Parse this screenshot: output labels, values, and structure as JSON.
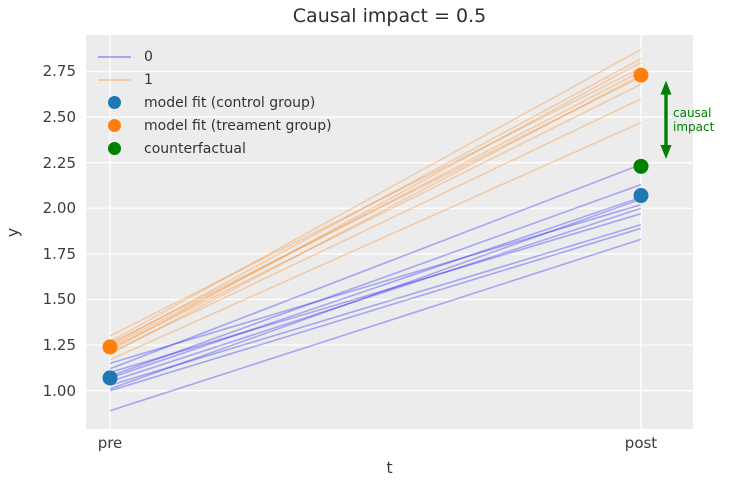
{
  "chart_data": {
    "type": "line",
    "title": "Causal impact = 0.5",
    "xlabel": "t",
    "ylabel": "y",
    "categories": [
      "pre",
      "post"
    ],
    "yticks": [
      1.0,
      1.25,
      1.5,
      1.75,
      2.0,
      2.25,
      2.5,
      2.75
    ],
    "ytick_labels": [
      "1.00",
      "1.25",
      "1.50",
      "1.75",
      "2.00",
      "2.25",
      "2.50",
      "2.75"
    ],
    "ylim": [
      0.79,
      2.95
    ],
    "grid": true,
    "legend_position": "upper-left",
    "plot_bg": "#ececec",
    "grid_color": "#ffffff",
    "series": [
      {
        "name": "0",
        "color": "rgba(0,0,255,0.3)",
        "lines": [
          [
            1.15,
            2.02
          ],
          [
            1.12,
            2.24
          ],
          [
            1.1,
            1.97
          ],
          [
            1.08,
            2.13
          ],
          [
            1.07,
            2.06
          ],
          [
            1.05,
            2.0
          ],
          [
            1.03,
            1.91
          ],
          [
            1.01,
            2.05
          ],
          [
            1.0,
            1.89
          ],
          [
            0.89,
            1.83
          ]
        ]
      },
      {
        "name": "1",
        "color": "rgba(255,127,14,0.3)",
        "lines": [
          [
            1.3,
            2.77
          ],
          [
            1.27,
            2.87
          ],
          [
            1.26,
            2.72
          ],
          [
            1.25,
            2.82
          ],
          [
            1.24,
            2.75
          ],
          [
            1.23,
            2.68
          ],
          [
            1.22,
            2.8
          ],
          [
            1.21,
            2.6
          ],
          [
            1.2,
            2.73
          ],
          [
            1.17,
            2.47
          ]
        ]
      }
    ],
    "points": [
      {
        "name": "model fit (control group)",
        "color": "#1f77b4",
        "values": {
          "pre": 1.07,
          "post": 2.07
        }
      },
      {
        "name": "model fit (treament group)",
        "color": "#ff7f0e",
        "values": {
          "pre": 1.24,
          "post": 2.73
        }
      },
      {
        "name": "counterfactual",
        "color": "#008000",
        "values": {
          "post": 2.23
        }
      }
    ],
    "annotation": {
      "text": "causal impact",
      "text_lines": [
        "causal",
        "impact"
      ],
      "color": "#008000",
      "arrow_from": 2.7,
      "arrow_to": 2.27
    }
  },
  "legend": {
    "entries": [
      {
        "label": "0",
        "swatch": "line",
        "color": "rgba(0,0,255,0.3)"
      },
      {
        "label": "1",
        "swatch": "line",
        "color": "rgba(255,127,14,0.3)"
      },
      {
        "label": "model fit (control group)",
        "swatch": "dot",
        "color": "#1f77b4"
      },
      {
        "label": "model fit (treament group)",
        "swatch": "dot",
        "color": "#ff7f0e"
      },
      {
        "label": "counterfactual",
        "swatch": "dot",
        "color": "#008000"
      }
    ]
  }
}
